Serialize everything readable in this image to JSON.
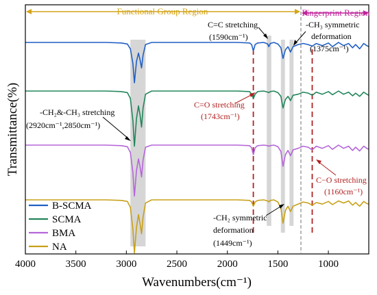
{
  "chart_data": {
    "type": "line",
    "title": "",
    "xlabel": "Wavenumbers(cm⁻¹)",
    "ylabel": "Transmittance(%)",
    "xlim": [
      4000,
      600
    ],
    "x_reversed": true,
    "x_ticks": [
      "4000",
      "3500",
      "3000",
      "2500",
      "2000",
      "1500",
      "1000"
    ],
    "y_ticks_shown": false,
    "grid": false,
    "legend_position": "bottom-left",
    "regions": [
      {
        "label": "Functional Group Region",
        "from": 4000,
        "to": 1300,
        "color": "#d4a418"
      },
      {
        "label": "Fingerprint Region",
        "from": 1300,
        "to": 600,
        "color": "#c0259b"
      }
    ],
    "region_divider": 1300,
    "bands": [
      {
        "center": 2885,
        "from": 2960,
        "to": 2810
      },
      {
        "center": 1590,
        "from": 1610,
        "to": 1565
      },
      {
        "center": 1449,
        "from": 1470,
        "to": 1430
      },
      {
        "center": 1375,
        "from": 1385,
        "to": 1345
      }
    ],
    "marker_lines": [
      1743,
      1160
    ],
    "series": [
      {
        "name": "B-SCMA",
        "color": "#1f5fc4",
        "x": [
          4000,
          3600,
          3200,
          3050,
          2990,
          2960,
          2935,
          2920,
          2900,
          2880,
          2865,
          2850,
          2835,
          2810,
          2750,
          2500,
          2200,
          1900,
          1780,
          1760,
          1743,
          1725,
          1700,
          1640,
          1600,
          1590,
          1575,
          1540,
          1500,
          1470,
          1449,
          1425,
          1400,
          1375,
          1350,
          1300,
          1250,
          1200,
          1160,
          1120,
          1060,
          1000,
          960,
          900,
          850,
          800,
          760,
          730,
          690,
          650,
          620,
          600
        ],
        "y": [
          100,
          100,
          100,
          99.5,
          98.5,
          94,
          80,
          62,
          82,
          90,
          84,
          76,
          88,
          98,
          100,
          100,
          100,
          100,
          99.5,
          98,
          92,
          98,
          99.5,
          100,
          98.5,
          96,
          99,
          100,
          98.5,
          95,
          85,
          93,
          96,
          91,
          96,
          98,
          99,
          98,
          96.5,
          99,
          97,
          99.5,
          96,
          100,
          97,
          99,
          95,
          98,
          94,
          99,
          97,
          96
        ]
      },
      {
        "name": "SCMA",
        "color": "#22855a",
        "x": [
          4000,
          3600,
          3200,
          3050,
          2990,
          2960,
          2935,
          2920,
          2900,
          2880,
          2865,
          2850,
          2835,
          2810,
          2750,
          2500,
          2200,
          1900,
          1780,
          1760,
          1743,
          1725,
          1700,
          1640,
          1600,
          1590,
          1575,
          1540,
          1500,
          1470,
          1449,
          1425,
          1400,
          1375,
          1350,
          1300,
          1250,
          1200,
          1160,
          1120,
          1060,
          1000,
          960,
          900,
          850,
          800,
          760,
          730,
          690,
          650,
          620,
          600
        ],
        "y": [
          100,
          100,
          100,
          99.5,
          98.5,
          93,
          72,
          48,
          74,
          86,
          78,
          66,
          84,
          97,
          100,
          100,
          100,
          100,
          99.5,
          97,
          93,
          97,
          99.5,
          100,
          99,
          98.5,
          99.5,
          100,
          98.5,
          95,
          84,
          92,
          95,
          91,
          96,
          97,
          99,
          98,
          96,
          99,
          97,
          99.5,
          96.5,
          100,
          97,
          99,
          95.5,
          98,
          95,
          99,
          97,
          96
        ]
      },
      {
        "name": "BMA",
        "color": "#b565d8",
        "x": [
          4000,
          3600,
          3200,
          3050,
          2990,
          2960,
          2935,
          2920,
          2900,
          2880,
          2865,
          2850,
          2835,
          2810,
          2750,
          2500,
          2200,
          1900,
          1780,
          1760,
          1743,
          1725,
          1700,
          1640,
          1600,
          1590,
          1575,
          1540,
          1500,
          1470,
          1449,
          1425,
          1400,
          1375,
          1350,
          1300,
          1250,
          1200,
          1160,
          1120,
          1060,
          1000,
          960,
          900,
          850,
          800,
          760,
          730,
          690,
          650,
          620,
          600
        ],
        "y": [
          100,
          100,
          100,
          99.5,
          98.5,
          93,
          74,
          52,
          76,
          87,
          80,
          70,
          86,
          98,
          100,
          100,
          100,
          100,
          99.5,
          97.5,
          91,
          97.5,
          99.5,
          100,
          99.5,
          99,
          99.5,
          100,
          98.5,
          94,
          80,
          91,
          95,
          90,
          95.5,
          97,
          99,
          98,
          95.5,
          99,
          97,
          99.5,
          96,
          100,
          97,
          99,
          95,
          98,
          94.5,
          99,
          97,
          96
        ]
      },
      {
        "name": "NA",
        "color": "#c8a018",
        "x": [
          4000,
          3600,
          3200,
          3050,
          2990,
          2960,
          2935,
          2920,
          2900,
          2880,
          2865,
          2850,
          2835,
          2810,
          2750,
          2500,
          2200,
          1900,
          1780,
          1760,
          1743,
          1725,
          1700,
          1640,
          1600,
          1590,
          1575,
          1540,
          1500,
          1470,
          1449,
          1425,
          1400,
          1375,
          1350,
          1300,
          1250,
          1200,
          1160,
          1120,
          1060,
          1000,
          960,
          900,
          850,
          800,
          760,
          730,
          690,
          650,
          620,
          600
        ],
        "y": [
          100,
          100,
          100,
          99.5,
          98.5,
          93,
          72,
          50,
          74,
          86,
          78,
          68,
          84,
          97,
          100,
          100,
          100,
          100,
          99.5,
          98,
          94,
          98,
          99.5,
          100,
          99,
          98,
          99.5,
          100,
          98,
          92,
          78,
          90,
          94,
          89,
          94,
          96,
          98,
          97,
          95,
          97.5,
          96,
          98.5,
          95.5,
          99,
          97,
          99,
          95,
          97.5,
          94,
          98.5,
          96.5,
          96
        ]
      }
    ],
    "annotations": [
      {
        "text": "C=C stretching",
        "sub": "(1590cm⁻¹)",
        "color": "#000000"
      },
      {
        "text": "-CH₃ symmetric",
        "sub": "deformation",
        "sub2": "(1375cm⁻¹)",
        "color": "#000000"
      },
      {
        "text": "C=O stretching",
        "sub": "(1743cm⁻¹)",
        "color": "#b02020"
      },
      {
        "text": "-CH₂&-CH₃ stretching",
        "sub": "(2920cm⁻¹,2850cm⁻¹)",
        "color": "#000000"
      },
      {
        "text": "C−O stretching",
        "sub": "(1160cm⁻¹)",
        "color": "#b02020"
      },
      {
        "text": "-CH₂ symmetric",
        "sub": "deformation",
        "sub2": "(1449cm⁻¹)",
        "color": "#000000"
      }
    ]
  }
}
